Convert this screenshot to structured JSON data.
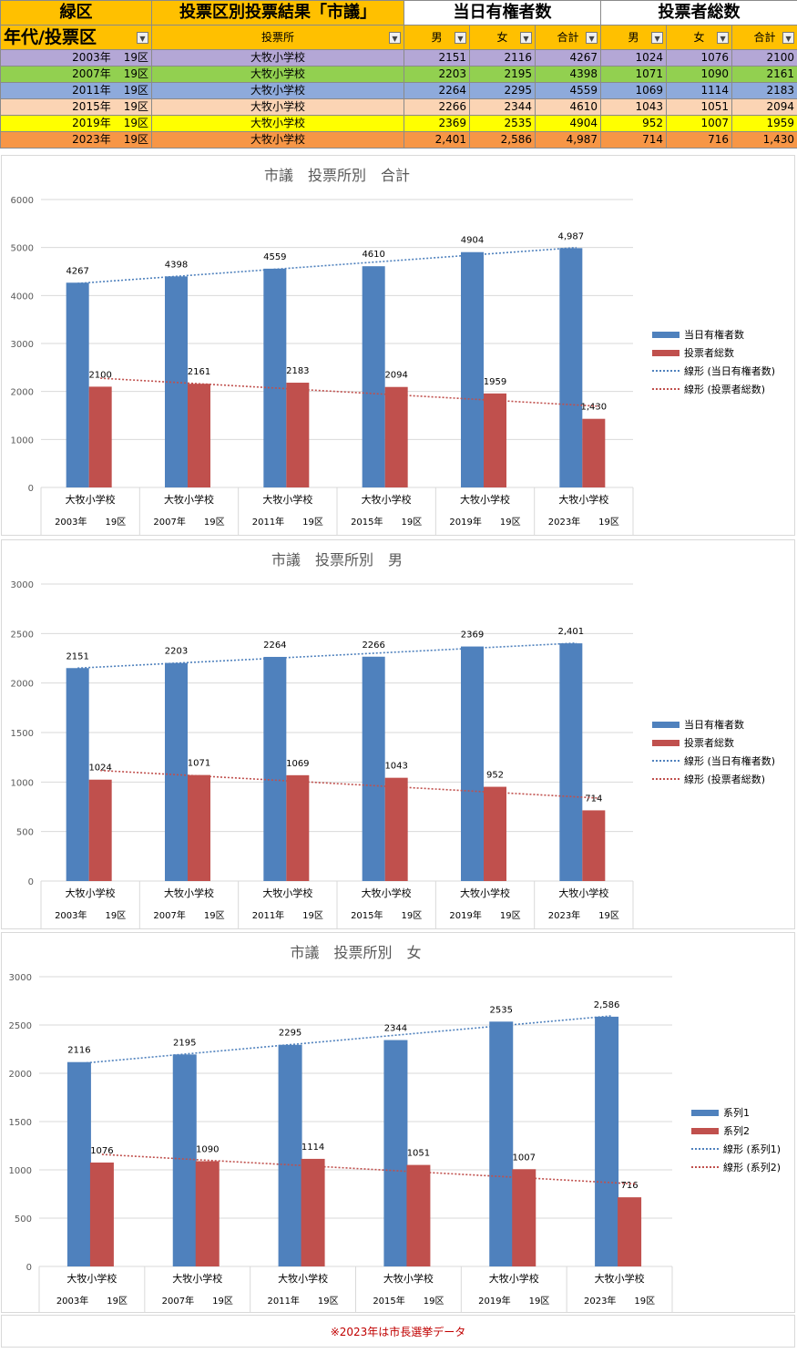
{
  "table": {
    "header1": {
      "district": "緑区",
      "title": "投票区別投票結果「市議」",
      "eligible_group": "当日有権者数",
      "voters_group": "投票者総数"
    },
    "header2": {
      "era_district": "年代/投票区",
      "place": "投票所",
      "male": "男",
      "female": "女",
      "total": "合計"
    },
    "rows": [
      {
        "year": "2003年",
        "district": "19区",
        "place": "大牧小学校",
        "em": "2151",
        "ef": "2116",
        "et": "4267",
        "vm": "1024",
        "vf": "1076",
        "vt": "2100",
        "color": "#b4a7d6"
      },
      {
        "year": "2007年",
        "district": "19区",
        "place": "大牧小学校",
        "em": "2203",
        "ef": "2195",
        "et": "4398",
        "vm": "1071",
        "vf": "1090",
        "vt": "2161",
        "color": "#92d050"
      },
      {
        "year": "2011年",
        "district": "19区",
        "place": "大牧小学校",
        "em": "2264",
        "ef": "2295",
        "et": "4559",
        "vm": "1069",
        "vf": "1114",
        "vt": "2183",
        "color": "#8eaadb"
      },
      {
        "year": "2015年",
        "district": "19区",
        "place": "大牧小学校",
        "em": "2266",
        "ef": "2344",
        "et": "4610",
        "vm": "1043",
        "vf": "1051",
        "vt": "2094",
        "color": "#fbd4b4"
      },
      {
        "year": "2019年",
        "district": "19区",
        "place": "大牧小学校",
        "em": "2369",
        "ef": "2535",
        "et": "4904",
        "vm": "952",
        "vf": "1007",
        "vt": "1959",
        "color": "#ffff00"
      },
      {
        "year": "2023年",
        "district": "19区",
        "place": "大牧小学校",
        "em": "2,401",
        "ef": "2,586",
        "et": "4,987",
        "vm": "714",
        "vf": "716",
        "vt": "1,430",
        "color": "#f79646"
      }
    ]
  },
  "chart_data": [
    {
      "type": "bar",
      "title": "市議　投票所別　合計",
      "categories": [
        "大牧小学校",
        "大牧小学校",
        "大牧小学校",
        "大牧小学校",
        "大牧小学校",
        "大牧小学校"
      ],
      "category_groups": [
        "2003年　　19区",
        "2007年　　19区",
        "2011年　　19区",
        "2015年　　19区",
        "2019年　　19区",
        "2023年　　19区"
      ],
      "series": [
        {
          "name": "当日有権者数",
          "values": [
            4267,
            4398,
            4559,
            4610,
            4904,
            4987
          ],
          "labels": [
            "4267",
            "4398",
            "4559",
            "4610",
            "4904",
            "4,987"
          ],
          "color": "#4f81bd"
        },
        {
          "name": "投票者総数",
          "values": [
            2100,
            2161,
            2183,
            2094,
            1959,
            1430
          ],
          "labels": [
            "2100",
            "2161",
            "2183",
            "2094",
            "1959",
            "1,430"
          ],
          "color": "#c0504d"
        }
      ],
      "trendlines": [
        {
          "name": "線形 (当日有権者数)",
          "color": "#4f81bd"
        },
        {
          "name": "線形 (投票者総数)",
          "color": "#c0504d"
        }
      ],
      "ylim": [
        0,
        6000
      ],
      "yticks": [
        0,
        1000,
        2000,
        3000,
        4000,
        5000,
        6000
      ],
      "grid": true,
      "legend": "right"
    },
    {
      "type": "bar",
      "title": "市議　投票所別　男",
      "categories": [
        "大牧小学校",
        "大牧小学校",
        "大牧小学校",
        "大牧小学校",
        "大牧小学校",
        "大牧小学校"
      ],
      "category_groups": [
        "2003年　　19区",
        "2007年　　19区",
        "2011年　　19区",
        "2015年　　19区",
        "2019年　　19区",
        "2023年　　19区"
      ],
      "series": [
        {
          "name": "当日有権者数",
          "values": [
            2151,
            2203,
            2264,
            2266,
            2369,
            2401
          ],
          "labels": [
            "2151",
            "2203",
            "2264",
            "2266",
            "2369",
            "2,401"
          ],
          "color": "#4f81bd"
        },
        {
          "name": "投票者総数",
          "values": [
            1024,
            1071,
            1069,
            1043,
            952,
            714
          ],
          "labels": [
            "1024",
            "1071",
            "1069",
            "1043",
            "952",
            "714"
          ],
          "color": "#c0504d"
        }
      ],
      "trendlines": [
        {
          "name": "線形 (当日有権者数)",
          "color": "#4f81bd"
        },
        {
          "name": "線形 (投票者総数)",
          "color": "#c0504d"
        }
      ],
      "ylim": [
        0,
        3000
      ],
      "yticks": [
        0,
        500,
        1000,
        1500,
        2000,
        2500,
        3000
      ],
      "grid": true,
      "legend": "right"
    },
    {
      "type": "bar",
      "title": "市議　投票所別　女",
      "categories": [
        "大牧小学校",
        "大牧小学校",
        "大牧小学校",
        "大牧小学校",
        "大牧小学校",
        "大牧小学校"
      ],
      "category_groups": [
        "2003年　　19区",
        "2007年　　19区",
        "2011年　　19区",
        "2015年　　19区",
        "2019年　　19区",
        "2023年　　19区"
      ],
      "series": [
        {
          "name": "系列1",
          "values": [
            2116,
            2195,
            2295,
            2344,
            2535,
            2586
          ],
          "labels": [
            "2116",
            "2195",
            "2295",
            "2344",
            "2535",
            "2,586"
          ],
          "color": "#4f81bd"
        },
        {
          "name": "系列2",
          "values": [
            1076,
            1090,
            1114,
            1051,
            1007,
            716
          ],
          "labels": [
            "1076",
            "1090",
            "1114",
            "1051",
            "1007",
            "716"
          ],
          "color": "#c0504d"
        }
      ],
      "trendlines": [
        {
          "name": "線形 (系列1)",
          "color": "#4f81bd"
        },
        {
          "name": "線形 (系列2)",
          "color": "#c0504d"
        }
      ],
      "ylim": [
        0,
        3000
      ],
      "yticks": [
        0,
        500,
        1000,
        1500,
        2000,
        2500,
        3000
      ],
      "grid": true,
      "legend": "right"
    }
  ],
  "note": "※2023年は市長選挙データ"
}
